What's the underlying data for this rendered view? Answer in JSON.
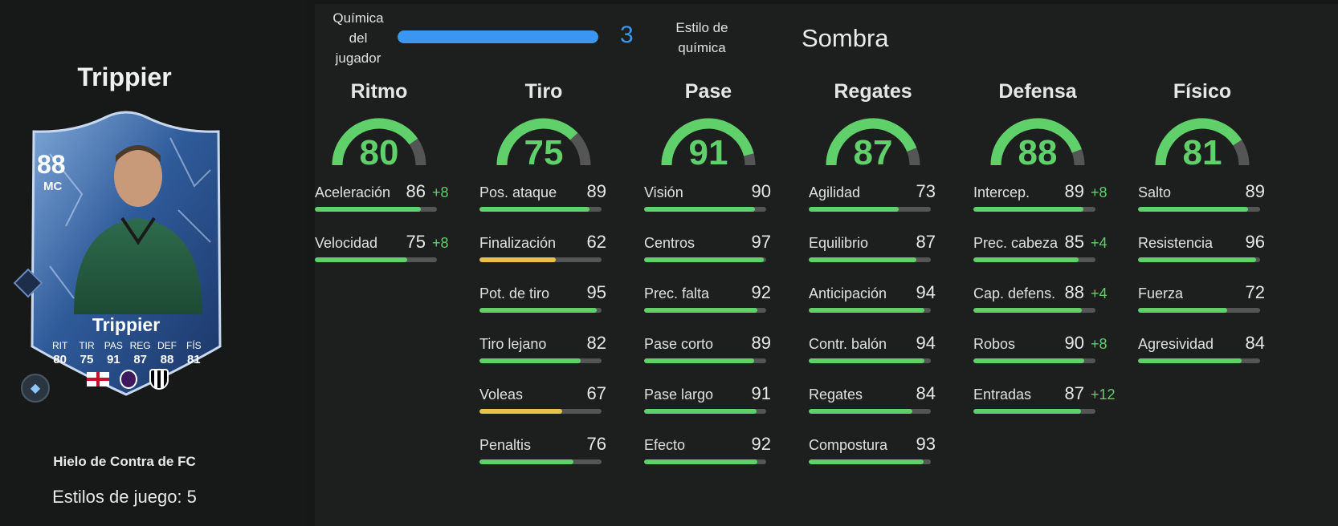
{
  "player": {
    "name": "Trippier",
    "card_name": "Trippier",
    "rating": "88",
    "position": "MC",
    "version": "Hielo de Contra de FC",
    "playstyles": "Estilos de juego: 5",
    "card_stats": [
      {
        "label": "RIT",
        "value": "80"
      },
      {
        "label": "TIR",
        "value": "75"
      },
      {
        "label": "PAS",
        "value": "91"
      },
      {
        "label": "REG",
        "value": "87"
      },
      {
        "label": "DEF",
        "value": "88"
      },
      {
        "label": "FÍS",
        "value": "81"
      }
    ],
    "badges": [
      "england-flag-icon",
      "premier-league-icon",
      "newcastle-crest-icon"
    ]
  },
  "chemistry": {
    "label": "Química del jugador",
    "value": "3",
    "fill": 1.0,
    "style_label": "Estilo de química",
    "style_value": "Sombra",
    "accent": "#3a96f0"
  },
  "colors": {
    "good": "#5fd06a",
    "mid": "#e8c04a",
    "track": "#555555"
  },
  "categories": [
    {
      "title": "Ritmo",
      "value": "80",
      "stats": [
        {
          "name": "Aceleración",
          "value": "86",
          "boost": "+8"
        },
        {
          "name": "Velocidad",
          "value": "75",
          "boost": "+8"
        }
      ]
    },
    {
      "title": "Tiro",
      "value": "75",
      "stats": [
        {
          "name": "Pos. ataque",
          "value": "89"
        },
        {
          "name": "Finalización",
          "value": "62"
        },
        {
          "name": "Pot. de tiro",
          "value": "95"
        },
        {
          "name": "Tiro lejano",
          "value": "82"
        },
        {
          "name": "Voleas",
          "value": "67"
        },
        {
          "name": "Penaltis",
          "value": "76"
        }
      ]
    },
    {
      "title": "Pase",
      "value": "91",
      "stats": [
        {
          "name": "Visión",
          "value": "90"
        },
        {
          "name": "Centros",
          "value": "97"
        },
        {
          "name": "Prec. falta",
          "value": "92"
        },
        {
          "name": "Pase corto",
          "value": "89"
        },
        {
          "name": "Pase largo",
          "value": "91"
        },
        {
          "name": "Efecto",
          "value": "92"
        }
      ]
    },
    {
      "title": "Regates",
      "value": "87",
      "stats": [
        {
          "name": "Agilidad",
          "value": "73"
        },
        {
          "name": "Equilibrio",
          "value": "87"
        },
        {
          "name": "Anticipación",
          "value": "94"
        },
        {
          "name": "Contr. balón",
          "value": "94"
        },
        {
          "name": "Regates",
          "value": "84"
        },
        {
          "name": "Compostura",
          "value": "93"
        }
      ]
    },
    {
      "title": "Defensa",
      "value": "88",
      "stats": [
        {
          "name": "Intercep.",
          "value": "89",
          "boost": "+8"
        },
        {
          "name": "Prec. cabeza",
          "value": "85",
          "boost": "+4"
        },
        {
          "name": "Cap. defens.",
          "value": "88",
          "boost": "+4"
        },
        {
          "name": "Robos",
          "value": "90",
          "boost": "+8"
        },
        {
          "name": "Entradas",
          "value": "87",
          "boost": "+12"
        }
      ]
    },
    {
      "title": "Físico",
      "value": "81",
      "stats": [
        {
          "name": "Salto",
          "value": "89"
        },
        {
          "name": "Resistencia",
          "value": "96"
        },
        {
          "name": "Fuerza",
          "value": "72"
        },
        {
          "name": "Agresividad",
          "value": "84"
        }
      ]
    }
  ]
}
